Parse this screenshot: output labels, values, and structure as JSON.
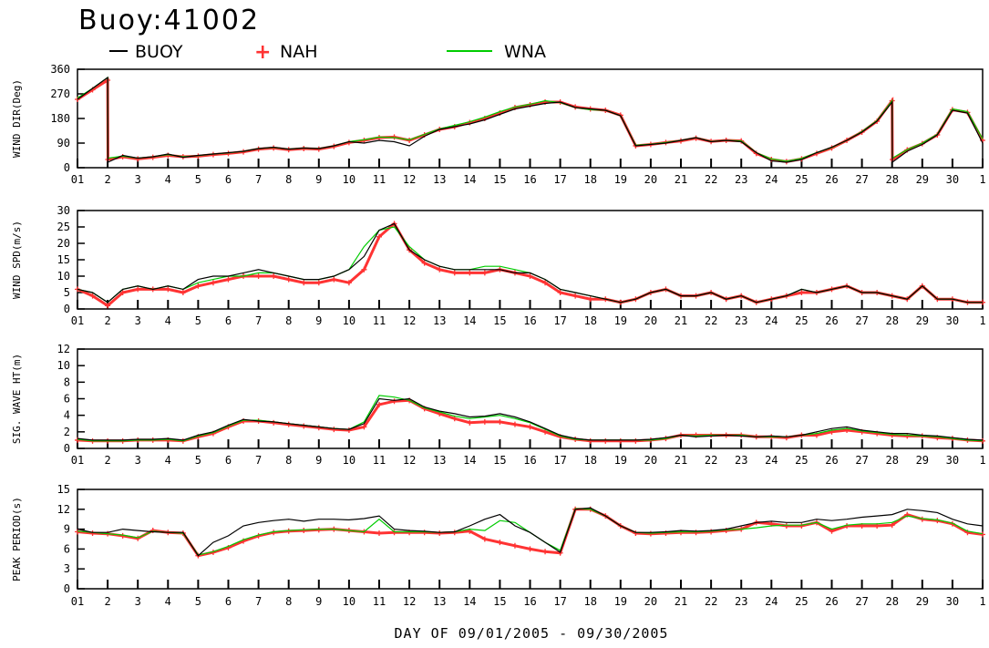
{
  "title": "Buoy:41002",
  "xlabel": "DAY OF 09/01/2005 - 09/30/2005",
  "legend": [
    {
      "name": "BUOY",
      "color": "#000000",
      "marker": "line"
    },
    {
      "name": "NAH",
      "color": "#ff3333",
      "marker": "plus"
    },
    {
      "name": "WNA",
      "color": "#00cc00",
      "marker": "line"
    }
  ],
  "x_ticks": [
    "01",
    "2",
    "3",
    "4",
    "5",
    "6",
    "7",
    "8",
    "9",
    "10",
    "11",
    "12",
    "13",
    "14",
    "15",
    "16",
    "17",
    "18",
    "19",
    "20",
    "21",
    "22",
    "23",
    "24",
    "25",
    "26",
    "27",
    "28",
    "29",
    "30",
    "1"
  ],
  "chart_data": [
    {
      "type": "line",
      "ylabel": "WIND DIR(Deg)",
      "ylim": [
        0,
        360
      ],
      "yticks": [
        0,
        90,
        180,
        270,
        360
      ],
      "x": [
        1,
        1.5,
        2,
        2.01,
        2.5,
        3,
        3.5,
        4,
        4.5,
        5,
        5.5,
        6,
        6.5,
        7,
        7.5,
        8,
        8.5,
        9,
        9.5,
        10,
        10.5,
        11,
        11.5,
        12,
        12.5,
        13,
        13.5,
        14,
        14.5,
        15,
        15.5,
        16,
        16.5,
        17,
        17.5,
        18,
        18.5,
        19,
        19.5,
        20,
        20.5,
        21,
        21.5,
        22,
        22.5,
        23,
        23.5,
        24,
        24.5,
        25,
        25.5,
        26,
        26.5,
        27,
        27.5,
        28,
        28.01,
        28.5,
        29,
        29.5,
        30,
        30.5,
        31
      ],
      "series": [
        {
          "name": "BUOY",
          "values": [
            250,
            290,
            330,
            20,
            45,
            35,
            40,
            50,
            38,
            45,
            50,
            55,
            60,
            70,
            75,
            68,
            72,
            70,
            80,
            95,
            90,
            100,
            95,
            80,
            115,
            140,
            150,
            160,
            175,
            195,
            215,
            225,
            235,
            240,
            220,
            215,
            210,
            190,
            80,
            85,
            90,
            100,
            110,
            95,
            100,
            95,
            55,
            25,
            20,
            30,
            55,
            75,
            100,
            130,
            170,
            240,
            20,
            60,
            85,
            120,
            210,
            200,
            90
          ]
        },
        {
          "name": "NAH",
          "values": [
            250,
            285,
            320,
            30,
            40,
            32,
            38,
            45,
            40,
            42,
            48,
            52,
            58,
            68,
            72,
            66,
            70,
            68,
            78,
            92,
            100,
            110,
            112,
            100,
            120,
            140,
            150,
            165,
            180,
            200,
            220,
            230,
            240,
            240,
            222,
            215,
            210,
            192,
            80,
            85,
            92,
            98,
            108,
            96,
            100,
            98,
            52,
            30,
            22,
            32,
            52,
            72,
            100,
            130,
            170,
            245,
            30,
            65,
            88,
            120,
            212,
            202,
            100
          ]
        },
        {
          "name": "WNA",
          "values": [
            255,
            290,
            330,
            35,
            42,
            35,
            40,
            48,
            40,
            44,
            50,
            54,
            60,
            70,
            74,
            68,
            72,
            70,
            80,
            95,
            102,
            112,
            110,
            102,
            122,
            142,
            155,
            168,
            185,
            205,
            222,
            232,
            245,
            238,
            220,
            212,
            210,
            190,
            82,
            86,
            92,
            100,
            110,
            96,
            100,
            98,
            55,
            32,
            24,
            34,
            55,
            74,
            100,
            132,
            172,
            245,
            35,
            66,
            90,
            122,
            215,
            205,
            105
          ]
        }
      ]
    },
    {
      "type": "line",
      "ylabel": "WIND SPD(m/s)",
      "ylim": [
        0,
        30
      ],
      "yticks": [
        0,
        5,
        10,
        15,
        20,
        25,
        30
      ],
      "x": [
        1,
        1.5,
        2,
        2.5,
        3,
        3.5,
        4,
        4.5,
        5,
        5.5,
        6,
        6.5,
        7,
        7.5,
        8,
        8.5,
        9,
        9.5,
        10,
        10.5,
        11,
        11.5,
        12,
        12.5,
        13,
        13.5,
        14,
        14.5,
        15,
        15.5,
        16,
        16.5,
        17,
        17.5,
        18,
        18.5,
        19,
        19.5,
        20,
        20.5,
        21,
        21.5,
        22,
        22.5,
        23,
        23.5,
        24,
        24.5,
        25,
        25.5,
        26,
        26.5,
        27,
        27.5,
        28,
        28.5,
        29,
        29.5,
        30,
        30.5,
        31
      ],
      "series": [
        {
          "name": "BUOY",
          "values": [
            6,
            5,
            2,
            6,
            7,
            6,
            7,
            6,
            9,
            10,
            10,
            11,
            12,
            11,
            10,
            9,
            9,
            10,
            12,
            16,
            24,
            26,
            18,
            15,
            13,
            12,
            12,
            12,
            12,
            11,
            11,
            9,
            6,
            5,
            4,
            3,
            2,
            3,
            5,
            6,
            4,
            4,
            5,
            3,
            4,
            2,
            3,
            4,
            6,
            5,
            6,
            7,
            5,
            5,
            4,
            3,
            7,
            3,
            3,
            2,
            2
          ]
        },
        {
          "name": "NAH",
          "values": [
            6,
            4,
            1,
            5,
            6,
            6,
            6,
            5,
            7,
            8,
            9,
            10,
            10,
            10,
            9,
            8,
            8,
            9,
            8,
            12,
            22,
            26,
            18,
            14,
            12,
            11,
            11,
            11,
            12,
            11,
            10,
            8,
            5,
            4,
            3,
            3,
            2,
            3,
            5,
            6,
            4,
            4,
            5,
            3,
            4,
            2,
            3,
            4,
            5,
            5,
            6,
            7,
            5,
            5,
            4,
            3,
            7,
            3,
            3,
            2,
            2
          ]
        },
        {
          "name": "WNA",
          "values": [
            6,
            5,
            2,
            6,
            7,
            6,
            7,
            6,
            8,
            9,
            10,
            10,
            11,
            11,
            10,
            9,
            9,
            10,
            12,
            19,
            24,
            25,
            19,
            15,
            13,
            12,
            12,
            13,
            13,
            12,
            11,
            9,
            6,
            5,
            4,
            3,
            2,
            3,
            5,
            6,
            4,
            4,
            5,
            3,
            4,
            2,
            3,
            4,
            6,
            5,
            6,
            7,
            5,
            5,
            4,
            3,
            7,
            3,
            3,
            2,
            2
          ]
        }
      ]
    },
    {
      "type": "line",
      "ylabel": "SIG. WAVE HT(m)",
      "ylim": [
        0,
        12
      ],
      "yticks": [
        0,
        2,
        4,
        6,
        8,
        10,
        12
      ],
      "x": [
        1,
        1.5,
        2,
        2.5,
        3,
        3.5,
        4,
        4.5,
        5,
        5.5,
        6,
        6.5,
        7,
        7.5,
        8,
        8.5,
        9,
        9.5,
        10,
        10.5,
        11,
        11.5,
        12,
        12.5,
        13,
        13.5,
        14,
        14.5,
        15,
        15.5,
        16,
        16.5,
        17,
        17.5,
        18,
        18.5,
        19,
        19.5,
        20,
        20.5,
        21,
        21.5,
        22,
        22.5,
        23,
        23.5,
        24,
        24.5,
        25,
        25.5,
        26,
        26.5,
        27,
        27.5,
        28,
        28.5,
        29,
        29.5,
        30,
        30.5,
        31
      ],
      "series": [
        {
          "name": "BUOY",
          "values": [
            1.2,
            1.0,
            1.0,
            1.0,
            1.1,
            1.1,
            1.2,
            1.0,
            1.6,
            2.0,
            2.8,
            3.5,
            3.3,
            3.2,
            3.0,
            2.8,
            2.6,
            2.4,
            2.3,
            3.0,
            6.0,
            5.8,
            6.0,
            5.0,
            4.5,
            4.2,
            3.8,
            3.9,
            4.2,
            3.8,
            3.2,
            2.4,
            1.6,
            1.2,
            1.0,
            1.0,
            1.0,
            1.0,
            1.1,
            1.3,
            1.6,
            1.4,
            1.5,
            1.6,
            1.5,
            1.4,
            1.5,
            1.4,
            1.6,
            2.0,
            2.4,
            2.6,
            2.2,
            2.0,
            1.8,
            1.8,
            1.6,
            1.5,
            1.3,
            1.1,
            1.0
          ]
        },
        {
          "name": "NAH",
          "values": [
            1.0,
            0.9,
            0.9,
            0.9,
            1.0,
            1.0,
            1.0,
            0.9,
            1.4,
            1.8,
            2.6,
            3.3,
            3.3,
            3.1,
            2.9,
            2.7,
            2.5,
            2.3,
            2.2,
            2.6,
            5.3,
            5.7,
            5.8,
            4.8,
            4.2,
            3.6,
            3.1,
            3.2,
            3.2,
            2.9,
            2.6,
            2.0,
            1.4,
            1.1,
            0.9,
            0.9,
            0.9,
            0.9,
            1.0,
            1.2,
            1.6,
            1.6,
            1.6,
            1.6,
            1.6,
            1.4,
            1.4,
            1.3,
            1.6,
            1.6,
            2.0,
            2.2,
            2.0,
            1.8,
            1.6,
            1.5,
            1.5,
            1.3,
            1.2,
            1.0,
            0.9
          ]
        },
        {
          "name": "WNA",
          "values": [
            1.1,
            0.9,
            0.9,
            0.9,
            1.0,
            1.0,
            1.1,
            0.9,
            1.5,
            1.9,
            2.7,
            3.4,
            3.4,
            3.2,
            3.0,
            2.8,
            2.6,
            2.4,
            2.3,
            3.2,
            6.4,
            6.2,
            5.8,
            4.9,
            4.4,
            3.9,
            3.6,
            3.8,
            4.0,
            3.6,
            3.1,
            2.3,
            1.5,
            1.1,
            1.0,
            1.0,
            1.0,
            1.0,
            1.0,
            1.2,
            1.6,
            1.5,
            1.6,
            1.6,
            1.6,
            1.4,
            1.4,
            1.4,
            1.6,
            1.8,
            2.2,
            2.4,
            2.1,
            1.9,
            1.7,
            1.6,
            1.5,
            1.4,
            1.2,
            1.0,
            0.9
          ]
        }
      ]
    },
    {
      "type": "line",
      "ylabel": "PEAK PERIOD(s)",
      "ylim": [
        0,
        15
      ],
      "yticks": [
        0,
        3,
        6,
        9,
        12,
        15
      ],
      "x": [
        1,
        1.5,
        2,
        2.5,
        3,
        3.5,
        4,
        4.5,
        5,
        5.5,
        6,
        6.5,
        7,
        7.5,
        8,
        8.5,
        9,
        9.5,
        10,
        10.5,
        11,
        11.5,
        12,
        12.5,
        13,
        13.5,
        14,
        14.5,
        15,
        15.5,
        16,
        16.5,
        17,
        17.5,
        18,
        18.5,
        19,
        19.5,
        20,
        20.5,
        21,
        21.5,
        22,
        22.5,
        23,
        23.5,
        24,
        24.5,
        25,
        25.5,
        26,
        26.5,
        27,
        27.5,
        28,
        28.5,
        29,
        29.5,
        30,
        30.5,
        31
      ],
      "series": [
        {
          "name": "BUOY",
          "values": [
            9.0,
            8.5,
            8.5,
            9.0,
            8.8,
            8.6,
            8.5,
            8.5,
            5.0,
            7.0,
            8.0,
            9.5,
            10.0,
            10.3,
            10.5,
            10.2,
            10.5,
            10.5,
            10.4,
            10.6,
            11.0,
            9.0,
            8.8,
            8.7,
            8.5,
            8.6,
            9.5,
            10.5,
            11.2,
            9.5,
            8.5,
            7.0,
            5.5,
            12.0,
            12.2,
            11.0,
            9.5,
            8.5,
            8.5,
            8.6,
            8.8,
            8.7,
            8.8,
            9.0,
            9.5,
            10.0,
            10.2,
            10.0,
            10.0,
            10.5,
            10.3,
            10.5,
            10.8,
            11.0,
            11.2,
            12.0,
            11.8,
            11.5,
            10.5,
            9.8,
            9.5
          ]
        },
        {
          "name": "NAH",
          "values": [
            8.6,
            8.4,
            8.3,
            8.0,
            7.6,
            8.8,
            8.5,
            8.4,
            5.0,
            5.5,
            6.2,
            7.2,
            8.0,
            8.5,
            8.7,
            8.8,
            8.9,
            9.0,
            8.8,
            8.6,
            8.4,
            8.5,
            8.5,
            8.5,
            8.4,
            8.5,
            8.7,
            7.5,
            7.0,
            6.5,
            6.0,
            5.6,
            5.4,
            12.0,
            12.0,
            11.0,
            9.5,
            8.4,
            8.3,
            8.4,
            8.5,
            8.5,
            8.6,
            8.8,
            9.0,
            10.0,
            9.8,
            9.5,
            9.5,
            10.0,
            8.7,
            9.5,
            9.5,
            9.5,
            9.6,
            11.2,
            10.5,
            10.3,
            9.8,
            8.5,
            8.2
          ]
        },
        {
          "name": "WNA",
          "values": [
            8.7,
            8.5,
            8.3,
            8.1,
            7.7,
            8.7,
            8.5,
            8.4,
            5.1,
            5.6,
            6.4,
            7.4,
            8.1,
            8.6,
            8.8,
            8.9,
            9.0,
            9.0,
            8.8,
            8.6,
            10.5,
            8.6,
            8.6,
            8.6,
            8.5,
            8.6,
            9.0,
            8.8,
            10.3,
            10.0,
            8.5,
            7.0,
            5.8,
            12.1,
            12.0,
            11.0,
            9.5,
            8.5,
            8.4,
            8.5,
            8.6,
            8.6,
            8.7,
            8.9,
            9.0,
            9.2,
            9.5,
            9.6,
            9.6,
            10.0,
            9.0,
            9.6,
            9.8,
            9.8,
            10.0,
            11.0,
            10.6,
            10.4,
            9.9,
            8.7,
            8.3
          ]
        }
      ]
    }
  ]
}
